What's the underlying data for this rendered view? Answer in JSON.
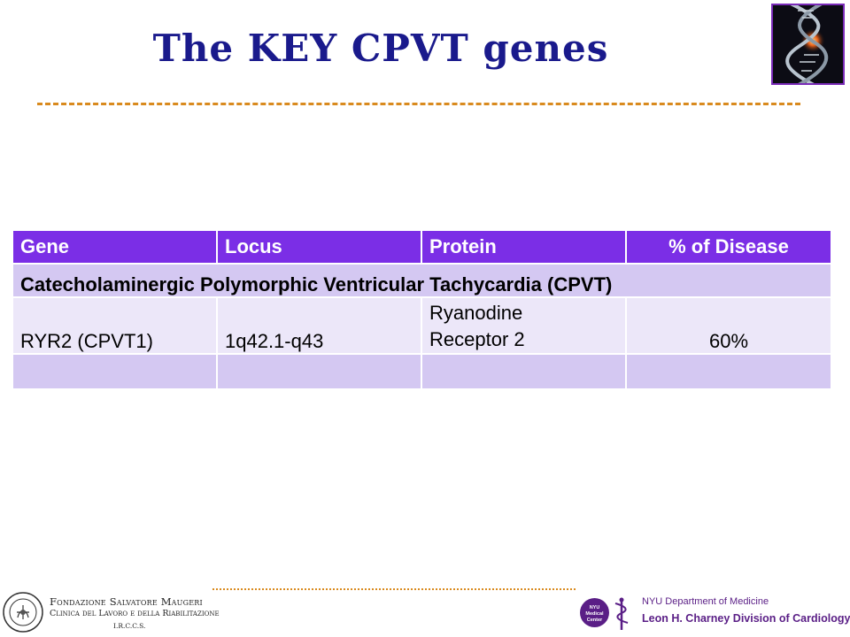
{
  "slide": {
    "title": "The KEY CPVT genes"
  },
  "table": {
    "headers": [
      "Gene",
      "Locus",
      "Protein",
      "% of Disease"
    ],
    "group_label": "Catecholaminergic Polymorphic Ventricular Tachycardia (CPVT)",
    "rows": [
      {
        "gene": "RYR2 (CPVT1)",
        "locus": "1q42.1-q43",
        "protein_line1": "Ryanodine",
        "protein_line2": "Receptor 2",
        "percent": "60%"
      }
    ]
  },
  "footer": {
    "left_logo": {
      "name": "Fondazione Salvatore Maugeri",
      "subtitle": "Clinica del Lavoro e della Riabilitazione",
      "tag": "I.R.C.C.S."
    },
    "right_logo": {
      "badge_line1": "NYU",
      "badge_line2": "Medical",
      "badge_line3": "Center",
      "department": "NYU Department of Medicine",
      "division": "Leon H. Charney Division of Cardiology"
    }
  },
  "colors": {
    "title": "#1a1a8c",
    "rule": "#d98a1e",
    "header_bg": "#7b2ee6",
    "row_band": "#d4c8f2",
    "row_light": "#ece7f9",
    "nyu_purple": "#5a1e86"
  },
  "icons": {
    "corner_image": "dna-helix-icon",
    "nyu_symbol": "caduceus-icon",
    "fsm_seal": "seal-icon"
  }
}
